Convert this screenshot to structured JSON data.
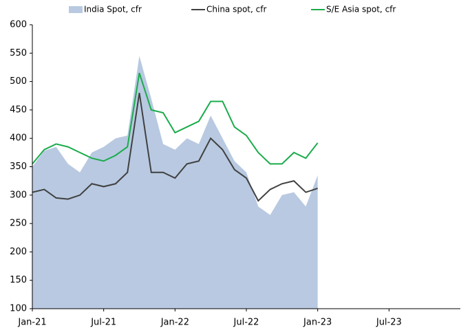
{
  "chart_data": {
    "type": "area-line",
    "x": [
      "2021-01",
      "2021-02",
      "2021-03",
      "2021-04",
      "2021-05",
      "2021-06",
      "2021-07",
      "2021-08",
      "2021-09",
      "2021-10",
      "2021-11",
      "2021-12",
      "2022-01",
      "2022-02",
      "2022-03",
      "2022-04",
      "2022-05",
      "2022-06",
      "2022-07",
      "2022-08",
      "2022-09",
      "2022-10",
      "2022-11",
      "2022-12",
      "2023-01"
    ],
    "series": [
      {
        "name": "India Spot, cfr",
        "kind": "area",
        "color": "#b8c9e1",
        "values": [
          350,
          378,
          385,
          355,
          340,
          375,
          385,
          400,
          405,
          545,
          470,
          390,
          380,
          400,
          390,
          440,
          400,
          360,
          340,
          280,
          265,
          300,
          305,
          280,
          335
        ]
      },
      {
        "name": "China spot, cfr",
        "kind": "line",
        "color": "#404040",
        "values": [
          305,
          310,
          295,
          293,
          300,
          320,
          315,
          320,
          340,
          480,
          340,
          340,
          330,
          355,
          360,
          400,
          380,
          345,
          330,
          290,
          310,
          320,
          325,
          305,
          312
        ]
      },
      {
        "name": "S/E Asia spot, cfr",
        "kind": "line",
        "color": "#1aab4a",
        "values": [
          355,
          380,
          390,
          385,
          375,
          365,
          360,
          370,
          385,
          515,
          450,
          445,
          410,
          420,
          430,
          465,
          465,
          420,
          405,
          375,
          355,
          355,
          375,
          365,
          392
        ]
      }
    ],
    "xlim": [
      "2021-01",
      "2024-01"
    ],
    "xticks": [
      {
        "value": "2021-01",
        "label": "Jan-21"
      },
      {
        "value": "2021-07",
        "label": "Jul-21"
      },
      {
        "value": "2022-01",
        "label": "Jan-22"
      },
      {
        "value": "2022-07",
        "label": "Jul-22"
      },
      {
        "value": "2023-01",
        "label": "Jan-23"
      },
      {
        "value": "2023-07",
        "label": "Jul-23"
      }
    ],
    "ylim": [
      100,
      600
    ],
    "yticks": [
      100,
      150,
      200,
      250,
      300,
      350,
      400,
      450,
      500,
      550,
      600
    ],
    "grid": false,
    "legend": "top"
  }
}
